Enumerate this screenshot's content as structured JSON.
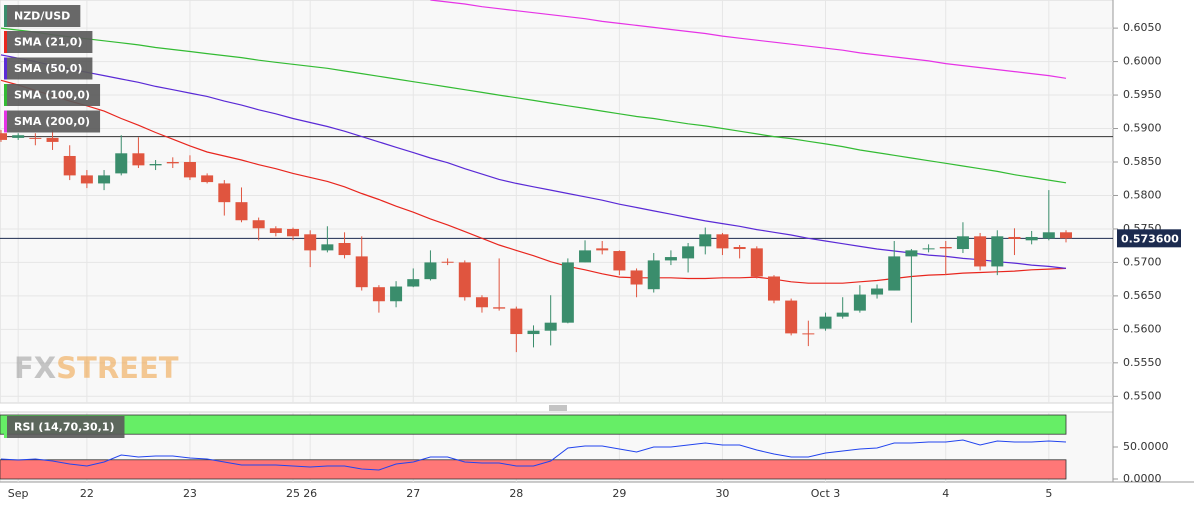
{
  "chart_data": [
    {
      "type": "candlestick",
      "title": "NZD/USD",
      "categories": [
        null,
        "Sep",
        null,
        null,
        null,
        "22",
        null,
        null,
        null,
        null,
        null,
        "23",
        null,
        null,
        null,
        null,
        null,
        "25",
        "26",
        null,
        null,
        null,
        null,
        null,
        "27",
        null,
        null,
        null,
        null,
        null,
        "28",
        null,
        null,
        null,
        null,
        null,
        "29",
        null,
        null,
        null,
        null,
        null,
        "30",
        null,
        null,
        null,
        null,
        null,
        "Oct 3",
        null,
        null,
        null,
        null,
        null,
        null,
        "4",
        null,
        null,
        null,
        null,
        null,
        "5",
        null
      ],
      "open": [
        0.5893,
        0.5886,
        0.5886,
        0.5886,
        0.5859,
        0.583,
        0.5818,
        0.5833,
        0.5863,
        0.5845,
        0.585,
        0.585,
        0.583,
        0.5818,
        0.579,
        0.5763,
        0.5751,
        0.575,
        0.5742,
        0.5718,
        0.5729,
        0.5709,
        0.5663,
        0.5642,
        0.5664,
        0.5675,
        0.5701,
        0.57,
        0.5648,
        0.5633,
        0.5631,
        0.5593,
        0.5598,
        0.561,
        0.57,
        0.5721,
        0.5717,
        0.5688,
        0.566,
        0.5703,
        0.5706,
        0.5724,
        0.5742,
        0.5723,
        0.5721,
        0.5679,
        0.5643,
        0.5594,
        0.5601,
        0.5619,
        0.5628,
        0.5652,
        0.5658,
        0.5709,
        0.572,
        0.5723,
        0.572,
        0.5739,
        0.5694,
        0.5738,
        0.5733,
        0.5736,
        0.5745
      ],
      "high": [
        0.5898,
        0.5893,
        0.5893,
        0.5898,
        0.5875,
        0.5838,
        0.5838,
        0.589,
        0.5887,
        0.5853,
        0.5857,
        0.586,
        0.5833,
        0.5823,
        0.5812,
        0.5767,
        0.5754,
        0.5752,
        0.5748,
        0.5754,
        0.5745,
        0.5739,
        0.5666,
        0.5672,
        0.5691,
        0.5718,
        0.5706,
        0.5703,
        0.5651,
        0.5706,
        0.5634,
        0.5606,
        0.5651,
        0.5706,
        0.5733,
        0.5732,
        0.5718,
        0.5691,
        0.5714,
        0.5718,
        0.5729,
        0.5752,
        0.5744,
        0.5726,
        0.5724,
        0.5681,
        0.5646,
        0.5613,
        0.5625,
        0.5648,
        0.5666,
        0.5667,
        0.5732,
        0.572,
        0.5727,
        0.5732,
        0.576,
        0.5744,
        0.5748,
        0.5751,
        0.5747,
        0.5808,
        0.5748
      ],
      "low": [
        0.588,
        0.5883,
        0.5875,
        0.5868,
        0.5823,
        0.5811,
        0.5808,
        0.583,
        0.5841,
        0.5838,
        0.5841,
        0.5823,
        0.5818,
        0.577,
        0.576,
        0.5733,
        0.5739,
        0.5733,
        0.5693,
        0.5715,
        0.5706,
        0.5658,
        0.5625,
        0.5633,
        0.5663,
        0.5673,
        0.5696,
        0.5643,
        0.5625,
        0.5628,
        0.5566,
        0.5573,
        0.5576,
        0.5609,
        0.57,
        0.5712,
        0.5681,
        0.5648,
        0.5655,
        0.5696,
        0.5685,
        0.5712,
        0.5711,
        0.5706,
        0.5676,
        0.5639,
        0.5591,
        0.5575,
        0.5598,
        0.5616,
        0.5625,
        0.5646,
        0.5658,
        0.561,
        0.5715,
        0.5681,
        0.5714,
        0.5688,
        0.5681,
        0.5711,
        0.5727,
        0.5733,
        0.573
      ],
      "close": [
        0.5883,
        0.589,
        0.5885,
        0.588,
        0.583,
        0.5818,
        0.583,
        0.5863,
        0.5845,
        0.5847,
        0.5848,
        0.5827,
        0.582,
        0.579,
        0.5763,
        0.5751,
        0.5744,
        0.5739,
        0.5718,
        0.5727,
        0.5711,
        0.5663,
        0.5642,
        0.5664,
        0.5675,
        0.57,
        0.57,
        0.5648,
        0.5633,
        0.5631,
        0.5593,
        0.5598,
        0.561,
        0.57,
        0.5718,
        0.5718,
        0.5688,
        0.5667,
        0.5703,
        0.5708,
        0.5724,
        0.5742,
        0.5721,
        0.572,
        0.5679,
        0.5643,
        0.5594,
        0.5593,
        0.5619,
        0.5625,
        0.5652,
        0.5661,
        0.5709,
        0.5718,
        0.5721,
        0.5721,
        0.5739,
        0.5694,
        0.5739,
        0.5735,
        0.5738,
        0.5745,
        0.5736
      ],
      "color_up": "#3a8d6c",
      "color_down": "#e0553f",
      "series": [
        {
          "name": "SMA (21,0)",
          "color": "#e8261e",
          "values": [
            0.5972,
            0.5965,
            0.5957,
            0.5949,
            0.5941,
            0.5934,
            0.5926,
            0.5915,
            0.5905,
            0.5894,
            0.5884,
            0.5874,
            0.5865,
            0.5859,
            0.5853,
            0.5846,
            0.584,
            0.5833,
            0.5827,
            0.5821,
            0.5813,
            0.5803,
            0.5794,
            0.5784,
            0.5775,
            0.5765,
            0.5756,
            0.5746,
            0.5736,
            0.5726,
            0.5718,
            0.571,
            0.5701,
            0.5694,
            0.5689,
            0.5683,
            0.5678,
            0.5677,
            0.5677,
            0.5677,
            0.5676,
            0.5676,
            0.5677,
            0.5677,
            0.5678,
            0.5675,
            0.5671,
            0.5669,
            0.5669,
            0.5669,
            0.5671,
            0.5673,
            0.5676,
            0.5679,
            0.5681,
            0.5682,
            0.5684,
            0.5685,
            0.5686,
            0.5687,
            0.5689,
            0.569,
            0.5691
          ]
        },
        {
          "name": "SMA (50,0)",
          "color": "#5a2ad6",
          "values": [
            0.601,
            0.6005,
            0.6,
            0.5994,
            0.5989,
            0.5984,
            0.5979,
            0.5974,
            0.5969,
            0.5963,
            0.5958,
            0.5953,
            0.5948,
            0.5941,
            0.5935,
            0.5928,
            0.5922,
            0.5915,
            0.5909,
            0.5903,
            0.5896,
            0.5888,
            0.588,
            0.5872,
            0.5864,
            0.5856,
            0.5849,
            0.584,
            0.5832,
            0.5824,
            0.5818,
            0.5813,
            0.5808,
            0.5803,
            0.5798,
            0.5793,
            0.5787,
            0.5782,
            0.5777,
            0.5772,
            0.5767,
            0.5762,
            0.5758,
            0.5754,
            0.5749,
            0.5745,
            0.5741,
            0.5736,
            0.5732,
            0.5728,
            0.5724,
            0.572,
            0.5717,
            0.5714,
            0.5711,
            0.5709,
            0.5706,
            0.5704,
            0.5701,
            0.5699,
            0.5696,
            0.5694,
            0.5691
          ]
        },
        {
          "name": "SMA (100,0)",
          "color": "#33bb33",
          "values": [
            0.605,
            0.6047,
            0.6044,
            0.604,
            0.6037,
            0.6034,
            0.6031,
            0.6028,
            0.6025,
            0.6021,
            0.6018,
            0.6015,
            0.6012,
            0.6009,
            0.6006,
            0.6002,
            0.5999,
            0.5996,
            0.5993,
            0.599,
            0.5986,
            0.5982,
            0.5978,
            0.5974,
            0.597,
            0.5966,
            0.5962,
            0.5958,
            0.5954,
            0.595,
            0.5946,
            0.5942,
            0.5938,
            0.5934,
            0.593,
            0.5926,
            0.5922,
            0.5918,
            0.5915,
            0.5911,
            0.5907,
            0.5904,
            0.59,
            0.5896,
            0.5892,
            0.5888,
            0.5885,
            0.5881,
            0.5877,
            0.5873,
            0.5868,
            0.5864,
            0.586,
            0.5856,
            0.5852,
            0.5848,
            0.5844,
            0.584,
            0.5836,
            0.5831,
            0.5827,
            0.5823,
            0.5819
          ]
        },
        {
          "name": "SMA (200,0)",
          "color": "#e633e6",
          "values": [
            null,
            null,
            null,
            null,
            null,
            null,
            null,
            null,
            null,
            null,
            null,
            null,
            null,
            null,
            null,
            null,
            null,
            null,
            null,
            null,
            null,
            null,
            null,
            null,
            null,
            0.6092,
            0.6089,
            0.6086,
            0.6082,
            0.6079,
            0.6076,
            0.6073,
            0.607,
            0.6067,
            0.6064,
            0.606,
            0.6057,
            0.6054,
            0.6051,
            0.6048,
            0.6045,
            0.6042,
            0.6038,
            0.6035,
            0.6032,
            0.6029,
            0.6026,
            0.6023,
            0.602,
            0.6017,
            0.6013,
            0.601,
            0.6007,
            0.6004,
            0.6001,
            0.5997,
            0.5994,
            0.5991,
            0.5988,
            0.5985,
            0.5982,
            0.5979,
            0.5975
          ]
        }
      ],
      "hlines": [
        0.5888
      ],
      "last_price": {
        "value": 0.5736,
        "label": "0.573600"
      },
      "ylim": [
        0.549,
        0.6092
      ],
      "yticks": [
        {
          "value": 0.55,
          "label": "0.5500"
        },
        {
          "value": 0.555,
          "label": "0.5550"
        },
        {
          "value": 0.56,
          "label": "0.5600"
        },
        {
          "value": 0.565,
          "label": "0.5650"
        },
        {
          "value": 0.57,
          "label": "0.5700"
        },
        {
          "value": 0.575,
          "label": "0.5750"
        },
        {
          "value": 0.58,
          "label": "0.5800"
        },
        {
          "value": 0.585,
          "label": "0.5850"
        },
        {
          "value": 0.59,
          "label": "0.5900"
        },
        {
          "value": 0.595,
          "label": "0.5950"
        },
        {
          "value": 0.6,
          "label": "0.6000"
        },
        {
          "value": 0.605,
          "label": "0.6050"
        }
      ],
      "grid": true,
      "watermark": [
        "FX",
        "STREET"
      ]
    },
    {
      "type": "line",
      "title": "RSI (14,70,30,1)",
      "color": "#2244ee",
      "values": [
        31.3,
        29.7,
        31.3,
        28.1,
        23.4,
        20.3,
        26.6,
        37.5,
        34.4,
        35.9,
        35.9,
        32.8,
        31.3,
        26.6,
        21.9,
        21.9,
        21.9,
        20.3,
        18.8,
        20.3,
        20.3,
        15.6,
        14.1,
        23.4,
        26.6,
        34.4,
        34.4,
        26.6,
        25,
        25,
        20.3,
        20.3,
        28.1,
        48.4,
        51.6,
        51.6,
        46.9,
        42.2,
        50,
        50,
        53.1,
        56.3,
        53.1,
        53.1,
        45.3,
        39.1,
        34.4,
        34.4,
        40.6,
        43.8,
        46.9,
        48.4,
        56.3,
        56.3,
        57.8,
        57.8,
        60.9,
        53.1,
        59.4,
        57.8,
        57.8,
        59.4,
        57.8
      ],
      "bands": [
        {
          "from": 70,
          "to": 100,
          "color": "#66ee66"
        },
        {
          "from": 0,
          "to": 30,
          "color": "#ff7777"
        }
      ],
      "ylim": [
        -4.7,
        104.7
      ],
      "yticks": [
        {
          "value": 0,
          "label": "0.0000"
        },
        {
          "value": 50,
          "label": "50.0000"
        }
      ]
    }
  ]
}
